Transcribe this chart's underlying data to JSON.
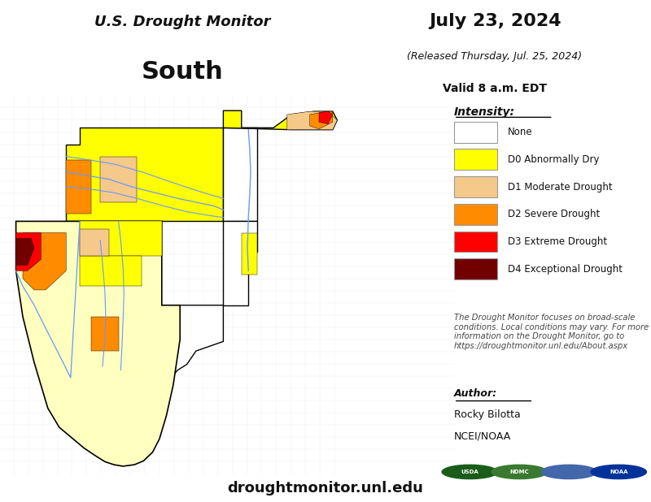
{
  "title_line1": "U.S. Drought Monitor",
  "title_line2": "South",
  "date_main": "July 23, 2024",
  "date_released": "(Released Thursday, Jul. 25, 2024)",
  "date_valid": "Valid 8 a.m. EDT",
  "legend_title": "Intensity:",
  "legend_items": [
    {
      "label": "None",
      "color": "#FFFFFF",
      "edgecolor": "#999999"
    },
    {
      "label": "D0 Abnormally Dry",
      "color": "#FFFF00",
      "edgecolor": "#999999"
    },
    {
      "label": "D1 Moderate Drought",
      "color": "#F5C98A",
      "edgecolor": "#999999"
    },
    {
      "label": "D2 Severe Drought",
      "color": "#FF8C00",
      "edgecolor": "#999999"
    },
    {
      "label": "D3 Extreme Drought",
      "color": "#FF0000",
      "edgecolor": "#999999"
    },
    {
      "label": "D4 Exceptional Drought",
      "color": "#720000",
      "edgecolor": "#999999"
    }
  ],
  "disclaimer": "The Drought Monitor focuses on broad-scale\nconditions. Local conditions may vary. For more\ninformation on the Drought Monitor, go to\nhttps://droughtmonitor.unl.edu/About.aspx",
  "author_label": "Author:",
  "author_name": "Rocky Bilotta",
  "author_org": "NCEI/NOAA",
  "website": "droughtmonitor.unl.edu",
  "bg_color": "#FFFFFF",
  "figsize": [
    8.0,
    6.18
  ],
  "dpi": 100,
  "river_color": "#6699FF",
  "state_edge_color": "#000000",
  "county_edge_color": "#555555",
  "logo_colors": [
    "#1a5c1a",
    "#3a7a30",
    "#4466aa",
    "#003399"
  ],
  "logo_labels": [
    "USDA",
    "NDMC",
    "",
    "NOAA"
  ]
}
